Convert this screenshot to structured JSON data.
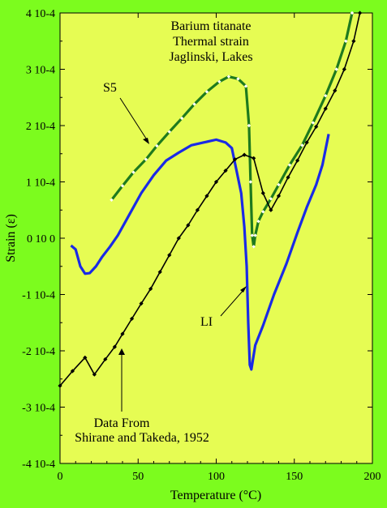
{
  "chart_data": {
    "type": "line",
    "title": "",
    "xlabel": "Temperature (°C)",
    "ylabel": "Strain (ε)",
    "xlim": [
      0,
      200
    ],
    "ylim": [
      -0.0004,
      0.0004
    ],
    "x_ticks": [
      {
        "value": 0,
        "label": "0"
      },
      {
        "value": 50,
        "label": "50"
      },
      {
        "value": 100,
        "label": "100"
      },
      {
        "value": 150,
        "label": "150"
      },
      {
        "value": 200,
        "label": "200"
      }
    ],
    "y_ticks": [
      {
        "value": 0.0004,
        "label": "4 10-4"
      },
      {
        "value": 0.0003,
        "label": "3 10-4"
      },
      {
        "value": 0.0002,
        "label": "2 10-4"
      },
      {
        "value": 0.0001,
        "label": "1 10-4"
      },
      {
        "value": 0,
        "label": "0 10 0"
      },
      {
        "value": -0.0001,
        "label": "-1 10-4"
      },
      {
        "value": -0.0002,
        "label": "-2 10-4"
      },
      {
        "value": -0.0003,
        "label": "-3 10-4"
      },
      {
        "value": -0.0004,
        "label": "-4 10-4"
      }
    ],
    "grid": false,
    "colors": {
      "background": "#7cfc1e",
      "plot_area": "#e6fc53",
      "s5": "#1e7a1e",
      "s5_marker": "#ffffff",
      "li": "#1a2ae6",
      "shirane": "#000000"
    },
    "series": [
      {
        "key": "s5",
        "name": "S5",
        "marker": "diamond",
        "x": [
          33,
          40,
          47,
          55,
          62,
          70,
          78,
          86,
          94,
          102,
          108,
          114,
          119,
          121,
          122,
          123,
          124,
          125,
          127,
          130,
          135,
          140,
          147,
          155,
          162,
          170,
          177,
          183,
          187
        ],
        "y": [
          6.8e-05,
          9.3e-05,
          0.000117,
          0.00014,
          0.000164,
          0.000189,
          0.000213,
          0.000238,
          0.00026,
          0.000278,
          0.000287,
          0.000283,
          0.00027,
          0.0002,
          0.0001,
          5e-06,
          -1.5e-05,
          5e-06,
          3e-05,
          4.7e-05,
          7e-05,
          9.5e-05,
          0.00013,
          0.000165,
          0.000205,
          0.000253,
          0.0003,
          0.00035,
          0.0004
        ]
      },
      {
        "key": "li",
        "name": "LI",
        "marker": "none",
        "x": [
          7,
          10,
          13,
          16,
          19,
          23,
          27,
          32,
          37,
          44,
          52,
          60,
          68,
          76,
          84,
          92,
          100,
          106,
          110,
          113,
          116,
          118,
          119.5,
          120.5,
          121.5,
          122.5,
          125,
          130,
          137,
          145,
          152,
          158,
          164,
          168,
          172
        ],
        "y": [
          -1.3e-05,
          -2e-05,
          -5e-05,
          -6.3e-05,
          -6.2e-05,
          -5e-05,
          -3.3e-05,
          -1.5e-05,
          5e-06,
          4e-05,
          8e-05,
          0.000112,
          0.000138,
          0.000152,
          0.000165,
          0.00017,
          0.000175,
          0.00017,
          0.00016,
          0.00012,
          8e-05,
          2e-05,
          -5e-05,
          -0.00015,
          -0.000225,
          -0.000233,
          -0.00019,
          -0.000155,
          -0.0001,
          -4.5e-05,
          1e-05,
          5.5e-05,
          9.5e-05,
          0.00013,
          0.000185
        ]
      },
      {
        "key": "shirane",
        "name": "Shirane and Takeda, 1952",
        "marker": "diamond",
        "x": [
          0,
          8,
          16,
          22,
          29,
          35,
          40,
          46,
          52,
          58,
          64,
          70,
          76,
          82,
          88,
          94,
          100,
          106,
          112,
          118,
          124,
          130,
          135,
          140,
          146,
          152,
          158,
          164,
          170,
          176,
          182,
          188,
          192
        ],
        "y": [
          -0.000262,
          -0.000236,
          -0.000212,
          -0.000242,
          -0.000215,
          -0.000193,
          -0.00017,
          -0.000143,
          -0.000116,
          -9e-05,
          -6e-05,
          -3e-05,
          0.0,
          2.3e-05,
          5e-05,
          7.5e-05,
          0.0001,
          0.00012,
          0.00014,
          0.000148,
          0.000142,
          8e-05,
          5e-05,
          7.5e-05,
          0.000108,
          0.000138,
          0.00017,
          0.000198,
          0.00023,
          0.000262,
          0.0003,
          0.00035,
          0.0004
        ]
      }
    ],
    "annotations": {
      "title_lines": [
        "Barium titanate",
        "Thermal strain",
        "Jaglinski, Lakes"
      ],
      "s5_label": "S5",
      "li_label": "LI",
      "source_lines": [
        "Data From",
        "Shirane and Takeda, 1952"
      ]
    }
  }
}
